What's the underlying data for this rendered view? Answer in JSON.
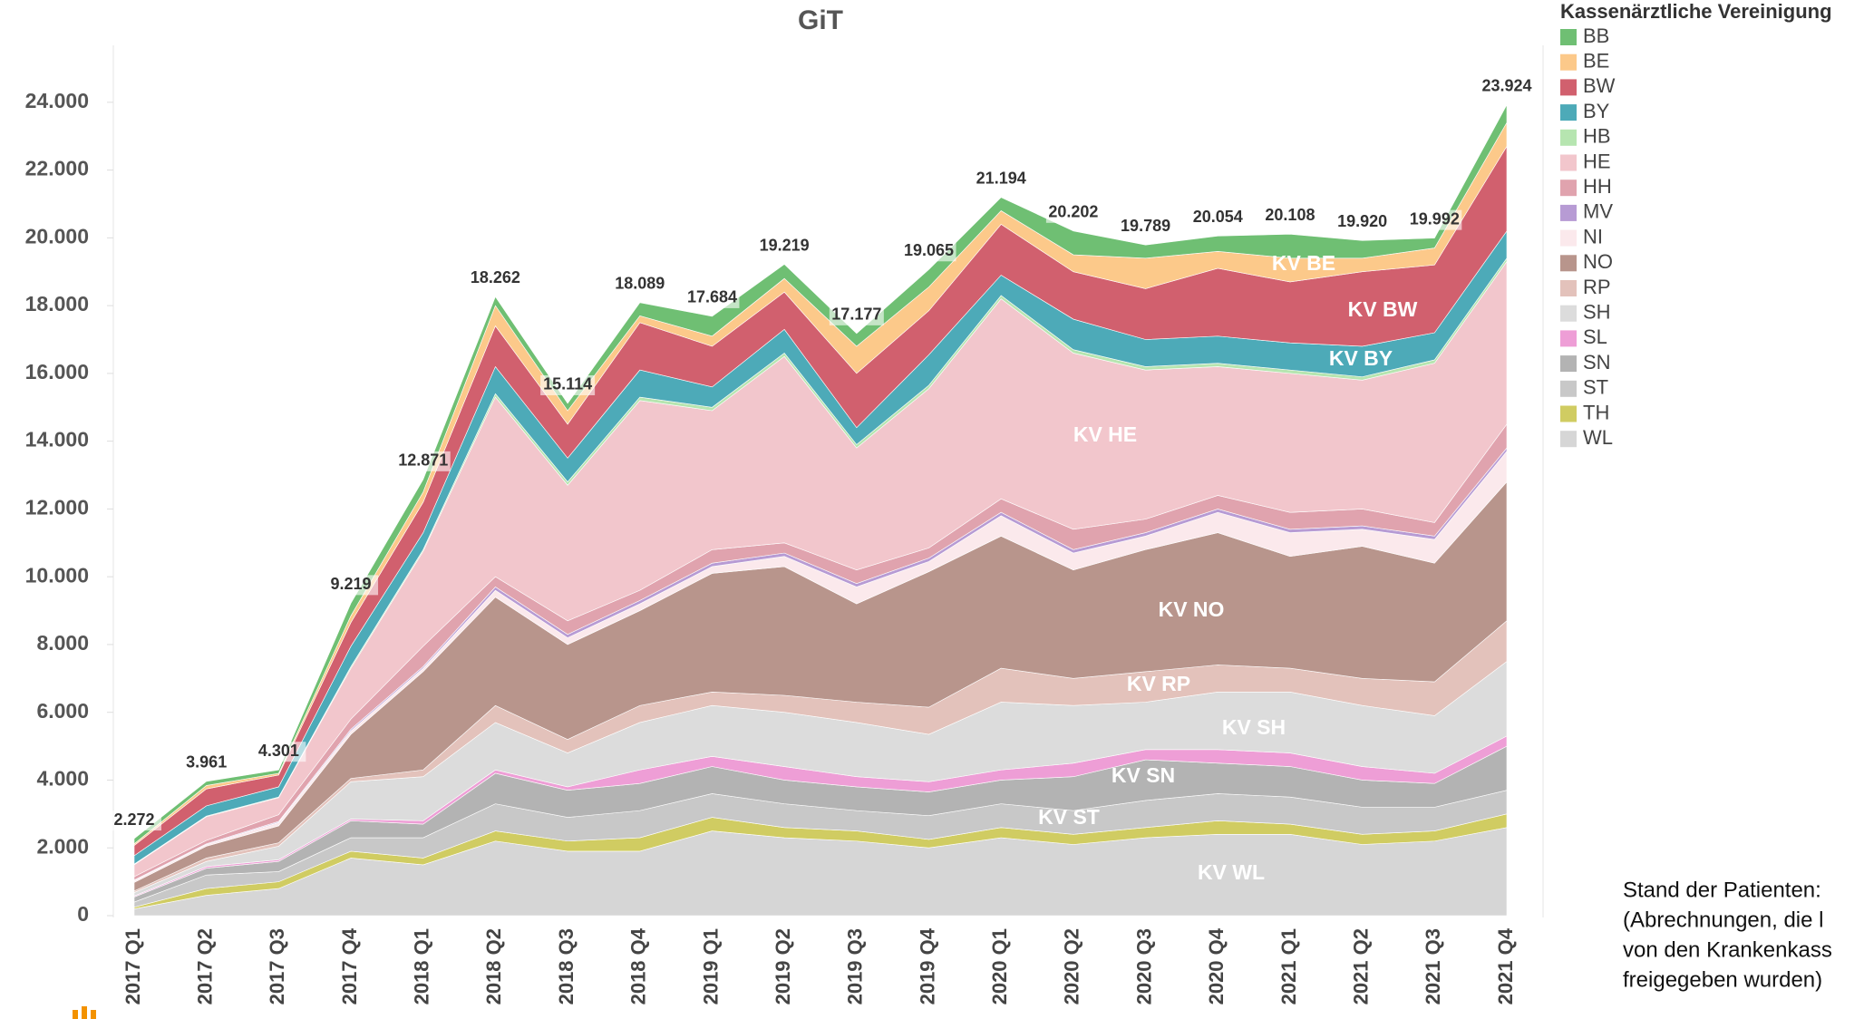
{
  "chart_data": {
    "type": "stacked_area",
    "title": "GiT",
    "legend_title": "Kassenärztliche Vereinigung",
    "categories": [
      "2017 Q1",
      "2017 Q2",
      "2017 Q3",
      "2017 Q4",
      "2018 Q1",
      "2018 Q2",
      "2018 Q3",
      "2018 Q4",
      "2019 Q1",
      "2019 Q2",
      "2019 Q3",
      "2019 Q4",
      "2020 Q1",
      "2020 Q2",
      "2020 Q3",
      "2020 Q4",
      "2021 Q1",
      "2021 Q2",
      "2021 Q3",
      "2021 Q4"
    ],
    "ylim": [
      0,
      25600
    ],
    "yticks": [
      0,
      {
        "value": 2000,
        "label": "2.000"
      },
      {
        "value": 4000,
        "label": "4.000"
      },
      {
        "value": 6000,
        "label": "6.000"
      },
      {
        "value": 8000,
        "label": "8.000"
      },
      {
        "value": 10000,
        "label": "10.000"
      },
      {
        "value": 12000,
        "label": "12.000"
      },
      {
        "value": 14000,
        "label": "14.000"
      },
      {
        "value": 16000,
        "label": "16.000"
      },
      {
        "value": 18000,
        "label": "18.000"
      },
      {
        "value": 20000,
        "label": "20.000"
      },
      {
        "value": 22000,
        "label": "22.000"
      },
      {
        "value": 24000,
        "label": "24.000"
      }
    ],
    "series": [
      {
        "name": "BB",
        "color": "#6fbf73",
        "values": [
          152,
          121,
          101,
          369,
          371,
          262,
          214,
          389,
          584,
          419,
          377,
          515,
          394,
          702,
          389,
          454,
          708,
          520,
          292,
          524
        ]
      },
      {
        "name": "BE",
        "color": "#fcc98a",
        "values": [
          50,
          100,
          50,
          200,
          300,
          600,
          400,
          200,
          300,
          400,
          800,
          700,
          400,
          500,
          900,
          500,
          700,
          400,
          500,
          700
        ]
      },
      {
        "name": "BW",
        "color": "#d1606e",
        "values": [
          300,
          500,
          350,
          700,
          900,
          1200,
          1000,
          1400,
          1200,
          1100,
          1600,
          1300,
          1500,
          1400,
          1500,
          2000,
          1800,
          2200,
          2000,
          2500
        ]
      },
      {
        "name": "BY",
        "color": "#4daab8",
        "values": [
          250,
          300,
          300,
          600,
          500,
          800,
          700,
          800,
          600,
          700,
          500,
          900,
          600,
          900,
          800,
          800,
          800,
          900,
          800,
          800
        ]
      },
      {
        "name": "HB",
        "color": "#b6e5b0",
        "values": [
          20,
          20,
          20,
          50,
          50,
          100,
          100,
          100,
          100,
          100,
          100,
          100,
          100,
          100,
          100,
          100,
          100,
          100,
          100,
          100
        ]
      },
      {
        "name": "HE",
        "color": "#f2c6cc",
        "values": [
          350,
          700,
          500,
          1500,
          2800,
          5300,
          4000,
          5600,
          4100,
          5500,
          3600,
          4700,
          5900,
          5200,
          4400,
          3800,
          4100,
          3800,
          4700,
          4800
        ]
      },
      {
        "name": "HH",
        "color": "#e0a3ae",
        "values": [
          100,
          100,
          200,
          300,
          600,
          300,
          400,
          300,
          400,
          300,
          400,
          300,
          400,
          600,
          400,
          400,
          500,
          500,
          400,
          700
        ]
      },
      {
        "name": "MV",
        "color": "#b79bd4",
        "values": [
          20,
          20,
          30,
          50,
          50,
          100,
          100,
          100,
          100,
          100,
          100,
          100,
          100,
          100,
          100,
          100,
          100,
          100,
          100,
          100
        ]
      },
      {
        "name": "NI",
        "color": "#fbe9ec",
        "values": [
          50,
          50,
          100,
          100,
          100,
          200,
          200,
          200,
          200,
          300,
          500,
          300,
          600,
          500,
          400,
          600,
          700,
          500,
          700,
          900
        ]
      },
      {
        "name": "NO",
        "color": "#b8958c",
        "values": [
          250,
          350,
          500,
          1300,
          2900,
          3200,
          2800,
          2800,
          3500,
          3800,
          2900,
          4000,
          3900,
          3200,
          3600,
          3900,
          3300,
          3900,
          3500,
          4100
        ]
      },
      {
        "name": "RP",
        "color": "#e3c2bb",
        "values": [
          50,
          100,
          100,
          100,
          200,
          500,
          400,
          500,
          400,
          500,
          600,
          800,
          1000,
          800,
          900,
          800,
          700,
          800,
          1000,
          1200
        ]
      },
      {
        "name": "SH",
        "color": "#dcdcdc",
        "values": [
          100,
          150,
          400,
          1100,
          1300,
          1400,
          1000,
          1400,
          1500,
          1600,
          1600,
          1400,
          2000,
          1700,
          1400,
          1700,
          1800,
          1800,
          1700,
          2200
        ]
      },
      {
        "name": "SL",
        "color": "#ee9ed6",
        "values": [
          30,
          50,
          50,
          50,
          100,
          100,
          100,
          400,
          300,
          400,
          300,
          300,
          300,
          400,
          300,
          400,
          400,
          400,
          300,
          300
        ]
      },
      {
        "name": "SN",
        "color": "#b3b3b3",
        "values": [
          150,
          200,
          300,
          500,
          400,
          900,
          800,
          800,
          800,
          700,
          700,
          700,
          700,
          1000,
          1200,
          900,
          900,
          800,
          700,
          1300
        ]
      },
      {
        "name": "ST",
        "color": "#c8c8c8",
        "values": [
          150,
          400,
          300,
          400,
          600,
          800,
          700,
          800,
          700,
          700,
          600,
          700,
          700,
          700,
          800,
          800,
          800,
          800,
          700,
          700
        ]
      },
      {
        "name": "TH",
        "color": "#d0cc62",
        "values": [
          50,
          200,
          200,
          200,
          200,
          300,
          300,
          400,
          400,
          300,
          300,
          250,
          300,
          300,
          300,
          400,
          300,
          300,
          300,
          400
        ]
      },
      {
        "name": "WL",
        "color": "#d6d6d6",
        "values": [
          200,
          600,
          800,
          1700,
          1500,
          2200,
          1900,
          1900,
          2500,
          2300,
          2200,
          2000,
          2300,
          2100,
          2300,
          2400,
          2400,
          2100,
          2200,
          2600
        ]
      }
    ],
    "totals": {
      "values": [
        2272,
        3961,
        4301,
        9219,
        12871,
        18262,
        15114,
        18089,
        17684,
        19219,
        17177,
        19065,
        21194,
        20202,
        19789,
        20054,
        20108,
        19920,
        19992,
        23924
      ],
      "value_labels": [
        "2.272",
        "3.961",
        "4.301",
        "9.219",
        "12.871",
        "18.262",
        "15.114",
        "18.089",
        "17.684",
        "19.219",
        "17.177",
        "19.065",
        "21.194",
        "20.202",
        "19.789",
        "20.054",
        "20.108",
        "19.920",
        "19.992",
        "23.924"
      ]
    },
    "annotations": [
      "KV BE",
      "KV BW",
      "KV BY",
      "KV HE",
      "KV NO",
      "KV RP",
      "KV SH",
      "KV SN",
      "KV ST",
      "KV WL"
    ],
    "footnote": [
      "Stand der Patienten:",
      "(Abrechnungen, die l",
      "von den Krankenkass",
      "freigegeben wurden)"
    ]
  }
}
